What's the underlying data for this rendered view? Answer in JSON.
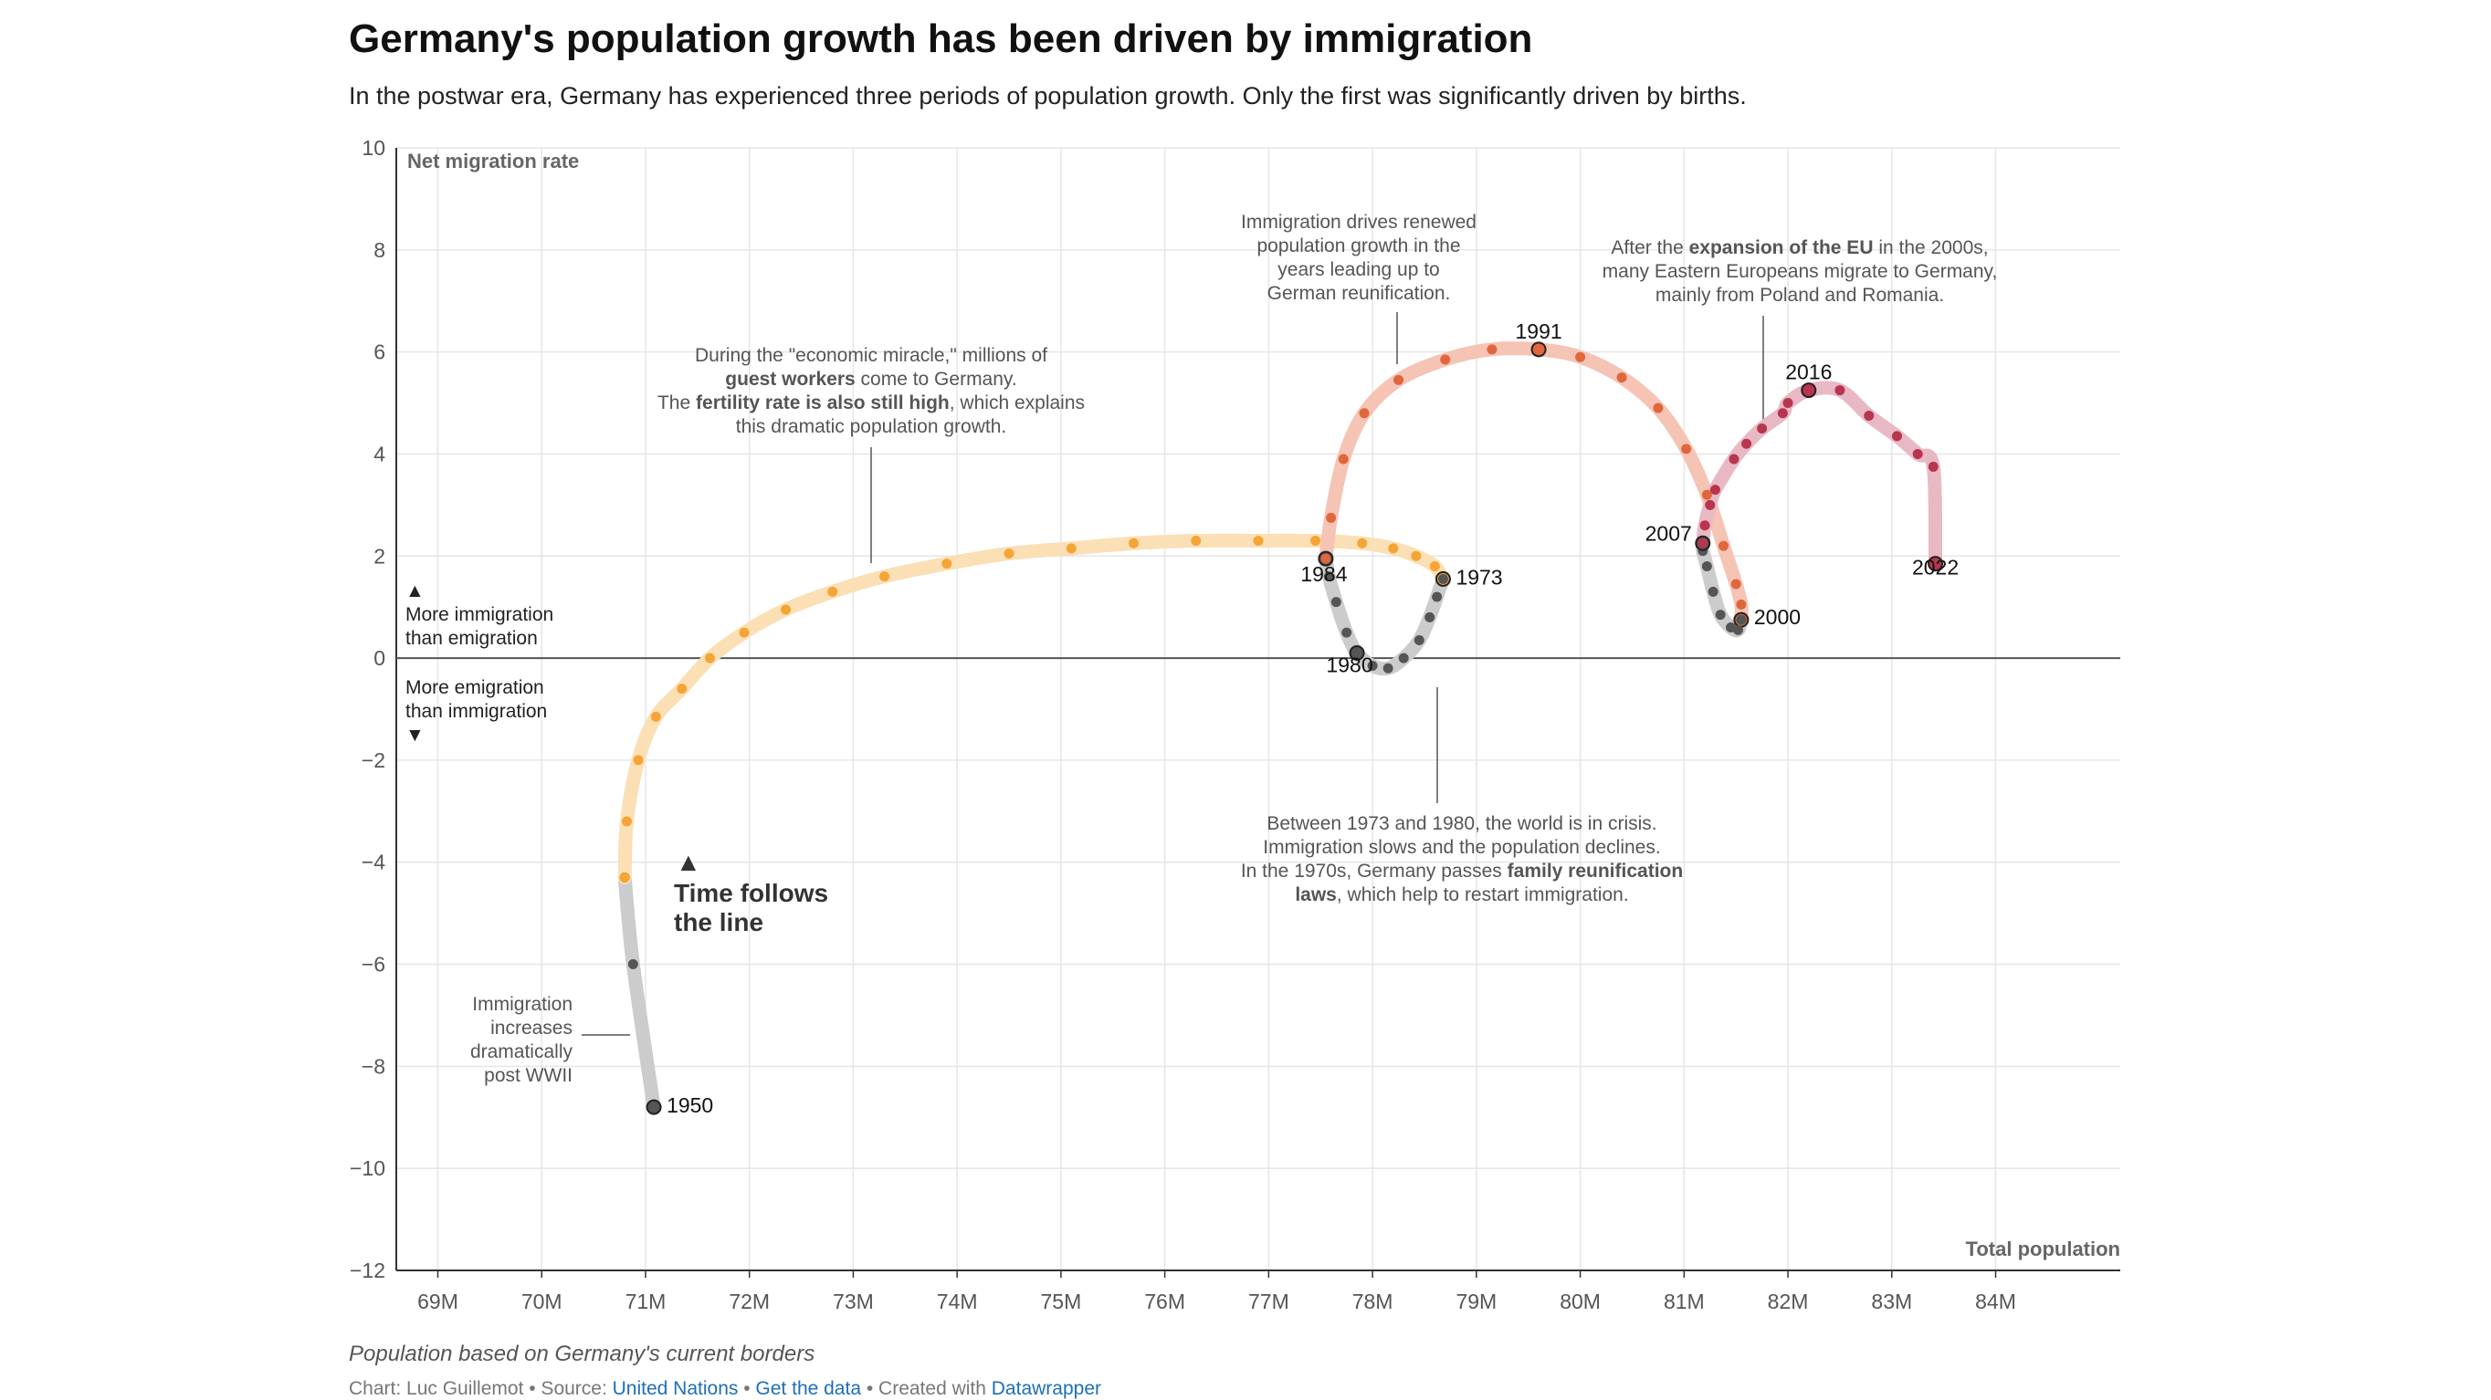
{
  "title": "Germany's population growth has been driven by immigration",
  "subtitle": "In the postwar era, Germany has experienced three periods of population growth. Only the first was significantly driven by births.",
  "footer": {
    "note": "Population based on Germany's current borders",
    "credit_prefix": "Chart: Luc Guillemot • Source: ",
    "source_link": "United Nations",
    "sep1": " • ",
    "data_link": "Get the data",
    "sep2": " • Created with ",
    "tool_link": "Datawrapper"
  },
  "colors": {
    "gray": "#555555",
    "gray_line": "#cccccc",
    "orange": "#f5a535",
    "orange_line": "#fbdfb5",
    "red": "#e0663c",
    "red_line": "#f5c4b5",
    "crimson": "#b8354f",
    "crimson_line": "#e8b9c4",
    "axis": "#333333",
    "grid": "#e6e6e6"
  },
  "side_labels": {
    "up_arrow": "▲",
    "up_line1": "More immigration",
    "up_line2": "than emigration",
    "down_line1": "More emigration",
    "down_line2": "than immigration",
    "down_arrow": "▼",
    "time_arrow": "▲",
    "time_line1": "Time follows",
    "time_line2": "the line"
  },
  "annotations": {
    "postwar": [
      "Immigration",
      "increases",
      "dramatically",
      "post WWII"
    ],
    "miracle": [
      [
        {
          "t": "During the \"economic miracle,\" millions of",
          "b": false
        }
      ],
      [
        {
          "t": "guest workers",
          "b": true
        },
        {
          "t": " come to Germany.",
          "b": false
        }
      ],
      [
        {
          "t": "The ",
          "b": false
        },
        {
          "t": "fertility rate is also still high",
          "b": true
        },
        {
          "t": ", which explains",
          "b": false
        }
      ],
      [
        {
          "t": "this dramatic population growth.",
          "b": false
        }
      ]
    ],
    "reunification": [
      [
        {
          "t": "Immigration drives renewed",
          "b": false
        }
      ],
      [
        {
          "t": "population growth in the",
          "b": false
        }
      ],
      [
        {
          "t": "years leading up to",
          "b": false
        }
      ],
      [
        {
          "t": "German reunification.",
          "b": false
        }
      ]
    ],
    "eu": [
      [
        {
          "t": "After the ",
          "b": false
        },
        {
          "t": "expansion of the EU",
          "b": true
        },
        {
          "t": " in the 2000s,",
          "b": false
        }
      ],
      [
        {
          "t": "many Eastern Europeans migrate to Germany,",
          "b": false
        }
      ],
      [
        {
          "t": "mainly from Poland and Romania.",
          "b": false
        }
      ]
    ],
    "crisis": [
      [
        {
          "t": "Between 1973 and 1980, the world is in crisis.",
          "b": false
        }
      ],
      [
        {
          "t": "Immigration slows and the population declines.",
          "b": false
        }
      ],
      [
        {
          "t": "In the 1970s, Germany passes ",
          "b": false
        },
        {
          "t": "family reunification",
          "b": true
        }
      ],
      [
        {
          "t": "laws",
          "b": true
        },
        {
          "t": ", which help to restart immigration.",
          "b": false
        }
      ]
    ]
  },
  "chart_data": {
    "type": "scatter",
    "connected": true,
    "xlabel": "Total population",
    "ylabel": "Net migration rate",
    "xlim": [
      68.6,
      85.2
    ],
    "ylim": [
      -12,
      10
    ],
    "x_unit": "M",
    "x_ticks": [
      69,
      70,
      71,
      72,
      73,
      74,
      75,
      76,
      77,
      78,
      79,
      80,
      81,
      82,
      83,
      84
    ],
    "y_ticks": [
      10,
      8,
      6,
      4,
      2,
      0,
      -2,
      -4,
      -6,
      -8,
      -10,
      -12
    ],
    "grid": true,
    "series": [
      {
        "color_key": "gray",
        "points": [
          {
            "year": 1950,
            "x": 71.08,
            "y": -8.8,
            "label": "1950"
          },
          {
            "year": 1951,
            "x": 70.88,
            "y": -6.0
          },
          {
            "year": 1952,
            "x": 70.8,
            "y": -4.3
          }
        ]
      },
      {
        "color_key": "orange",
        "points": [
          {
            "year": 1952,
            "x": 70.8,
            "y": -4.3
          },
          {
            "year": 1953,
            "x": 70.82,
            "y": -3.2
          },
          {
            "year": 1954,
            "x": 70.93,
            "y": -2.0
          },
          {
            "year": 1955,
            "x": 71.1,
            "y": -1.15
          },
          {
            "year": 1956,
            "x": 71.35,
            "y": -0.6
          },
          {
            "year": 1957,
            "x": 71.62,
            "y": 0.0
          },
          {
            "year": 1958,
            "x": 71.95,
            "y": 0.5
          },
          {
            "year": 1959,
            "x": 72.35,
            "y": 0.95
          },
          {
            "year": 1960,
            "x": 72.8,
            "y": 1.3
          },
          {
            "year": 1961,
            "x": 73.3,
            "y": 1.6
          },
          {
            "year": 1962,
            "x": 73.9,
            "y": 1.85
          },
          {
            "year": 1963,
            "x": 74.5,
            "y": 2.05
          },
          {
            "year": 1964,
            "x": 75.1,
            "y": 2.15
          },
          {
            "year": 1965,
            "x": 75.7,
            "y": 2.25
          },
          {
            "year": 1966,
            "x": 76.3,
            "y": 2.3
          },
          {
            "year": 1967,
            "x": 76.9,
            "y": 2.3
          },
          {
            "year": 1968,
            "x": 77.45,
            "y": 2.3
          },
          {
            "year": 1969,
            "x": 77.9,
            "y": 2.25
          },
          {
            "year": 1970,
            "x": 78.2,
            "y": 2.15
          },
          {
            "year": 1971,
            "x": 78.42,
            "y": 2.0
          },
          {
            "year": 1972,
            "x": 78.6,
            "y": 1.8
          },
          {
            "year": 1973,
            "x": 78.68,
            "y": 1.55,
            "label": "1973"
          }
        ]
      },
      {
        "color_key": "gray",
        "points": [
          {
            "year": 1973,
            "x": 78.68,
            "y": 1.55
          },
          {
            "year": 1974,
            "x": 78.62,
            "y": 1.2
          },
          {
            "year": 1975,
            "x": 78.55,
            "y": 0.8
          },
          {
            "year": 1976,
            "x": 78.45,
            "y": 0.35
          },
          {
            "year": 1977,
            "x": 78.3,
            "y": 0.0
          },
          {
            "year": 1978,
            "x": 78.15,
            "y": -0.2
          },
          {
            "year": 1979,
            "x": 78.0,
            "y": -0.15
          },
          {
            "year": 1980,
            "x": 77.85,
            "y": 0.1,
            "label": "1980"
          },
          {
            "year": 1981,
            "x": 77.75,
            "y": 0.5
          },
          {
            "year": 1982,
            "x": 77.65,
            "y": 1.1
          },
          {
            "year": 1983,
            "x": 77.58,
            "y": 1.6
          },
          {
            "year": 1984,
            "x": 77.55,
            "y": 1.95,
            "label": "1984"
          }
        ]
      },
      {
        "color_key": "red",
        "points": [
          {
            "year": 1984,
            "x": 77.55,
            "y": 1.95
          },
          {
            "year": 1985,
            "x": 77.6,
            "y": 2.75
          },
          {
            "year": 1986,
            "x": 77.72,
            "y": 3.9
          },
          {
            "year": 1987,
            "x": 77.92,
            "y": 4.8
          },
          {
            "year": 1988,
            "x": 78.25,
            "y": 5.45
          },
          {
            "year": 1989,
            "x": 78.7,
            "y": 5.85
          },
          {
            "year": 1990,
            "x": 79.15,
            "y": 6.05
          },
          {
            "year": 1991,
            "x": 79.6,
            "y": 6.05,
            "label": "1991"
          },
          {
            "year": 1992,
            "x": 80.0,
            "y": 5.9
          },
          {
            "year": 1993,
            "x": 80.4,
            "y": 5.5
          },
          {
            "year": 1994,
            "x": 80.75,
            "y": 4.9
          },
          {
            "year": 1995,
            "x": 81.02,
            "y": 4.1
          },
          {
            "year": 1996,
            "x": 81.22,
            "y": 3.2
          },
          {
            "year": 1997,
            "x": 81.38,
            "y": 2.2
          },
          {
            "year": 1998,
            "x": 81.5,
            "y": 1.45
          },
          {
            "year": 1999,
            "x": 81.55,
            "y": 1.05
          },
          {
            "year": 2000,
            "x": 81.55,
            "y": 0.75,
            "label": "2000"
          }
        ]
      },
      {
        "color_key": "gray",
        "points": [
          {
            "year": 2000,
            "x": 81.55,
            "y": 0.75
          },
          {
            "year": 2001,
            "x": 81.52,
            "y": 0.55
          },
          {
            "year": 2002,
            "x": 81.45,
            "y": 0.6
          },
          {
            "year": 2003,
            "x": 81.35,
            "y": 0.85
          },
          {
            "year": 2004,
            "x": 81.28,
            "y": 1.3
          },
          {
            "year": 2005,
            "x": 81.22,
            "y": 1.8
          },
          {
            "year": 2006,
            "x": 81.18,
            "y": 2.1
          },
          {
            "year": 2007,
            "x": 81.18,
            "y": 2.25,
            "label": "2007"
          }
        ]
      },
      {
        "color_key": "crimson",
        "points": [
          {
            "year": 2007,
            "x": 81.18,
            "y": 2.25
          },
          {
            "year": 2008,
            "x": 81.2,
            "y": 2.6
          },
          {
            "year": 2009,
            "x": 81.25,
            "y": 3.0
          },
          {
            "year": 2010,
            "x": 81.3,
            "y": 3.3
          },
          {
            "year": 2011,
            "x": 81.48,
            "y": 3.9
          },
          {
            "year": 2012,
            "x": 81.6,
            "y": 4.2
          },
          {
            "year": 2013,
            "x": 81.75,
            "y": 4.5
          },
          {
            "year": 2014,
            "x": 81.95,
            "y": 4.8
          },
          {
            "year": 2015,
            "x": 82.0,
            "y": 5.0
          },
          {
            "year": 2016,
            "x": 82.2,
            "y": 5.25,
            "label": "2016"
          },
          {
            "year": 2017,
            "x": 82.5,
            "y": 5.25
          },
          {
            "year": 2018,
            "x": 82.78,
            "y": 4.75
          },
          {
            "year": 2019,
            "x": 83.05,
            "y": 4.35
          },
          {
            "year": 2020,
            "x": 83.25,
            "y": 4.0
          },
          {
            "year": 2021,
            "x": 83.4,
            "y": 3.75
          },
          {
            "year": 2022,
            "x": 83.42,
            "y": 1.85,
            "label": "2022"
          }
        ]
      }
    ]
  }
}
